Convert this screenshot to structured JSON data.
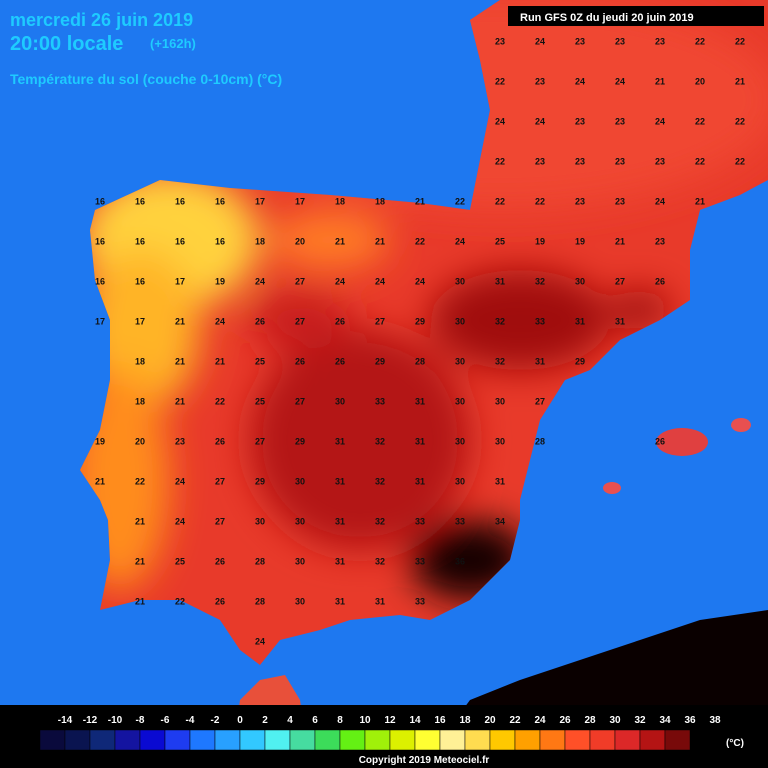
{
  "header": {
    "date": "mercredi 26 juin 2019",
    "time": "20:00 locale",
    "lead": "(+162h)",
    "parameter": "Température du sol (couche 0-10cm) (°C)",
    "run": "Run GFS 0Z du jeudi 20 juin 2019"
  },
  "grid": [
    [
      null,
      null,
      null,
      null,
      null,
      null,
      null,
      null,
      null,
      null,
      23,
      24,
      23,
      23,
      23,
      22,
      22
    ],
    [
      null,
      null,
      null,
      null,
      null,
      null,
      null,
      null,
      null,
      null,
      22,
      23,
      24,
      24,
      21,
      20,
      21
    ],
    [
      null,
      null,
      null,
      null,
      null,
      null,
      null,
      null,
      null,
      null,
      24,
      24,
      23,
      23,
      24,
      22,
      22
    ],
    [
      null,
      null,
      null,
      null,
      null,
      null,
      null,
      null,
      null,
      null,
      22,
      23,
      23,
      23,
      23,
      22,
      22
    ],
    [
      16,
      16,
      16,
      16,
      17,
      17,
      18,
      18,
      21,
      22,
      22,
      22,
      23,
      23,
      24,
      21,
      null
    ],
    [
      16,
      16,
      16,
      16,
      18,
      20,
      21,
      21,
      22,
      24,
      25,
      19,
      19,
      21,
      23,
      null,
      null
    ],
    [
      16,
      16,
      17,
      19,
      24,
      27,
      24,
      24,
      24,
      30,
      31,
      32,
      30,
      27,
      26,
      null,
      null
    ],
    [
      17,
      17,
      21,
      24,
      26,
      27,
      26,
      27,
      29,
      30,
      32,
      33,
      31,
      31,
      null,
      null,
      null
    ],
    [
      null,
      18,
      21,
      21,
      25,
      26,
      26,
      29,
      28,
      30,
      32,
      31,
      29,
      null,
      null,
      null,
      null
    ],
    [
      null,
      18,
      21,
      22,
      25,
      27,
      30,
      33,
      31,
      30,
      30,
      27,
      null,
      null,
      null,
      null,
      null
    ],
    [
      19,
      20,
      23,
      26,
      27,
      29,
      31,
      32,
      31,
      30,
      30,
      28,
      null,
      null,
      26,
      null,
      null
    ],
    [
      21,
      22,
      24,
      27,
      29,
      30,
      31,
      32,
      31,
      30,
      31,
      null,
      null,
      null,
      null,
      null,
      null
    ],
    [
      null,
      21,
      24,
      27,
      30,
      30,
      31,
      32,
      33,
      33,
      34,
      null,
      null,
      null,
      null,
      null,
      null
    ],
    [
      null,
      21,
      25,
      26,
      28,
      30,
      31,
      32,
      33,
      36,
      null,
      null,
      null,
      null,
      null,
      null,
      null
    ],
    [
      null,
      21,
      22,
      26,
      28,
      30,
      31,
      31,
      33,
      null,
      null,
      null,
      null,
      null,
      null,
      null,
      null
    ],
    [
      null,
      null,
      null,
      null,
      24,
      null,
      null,
      null,
      null,
      null,
      null,
      null,
      null,
      null,
      null,
      null,
      null
    ]
  ],
  "legend": {
    "labels": [
      -14,
      -12,
      -10,
      -8,
      -6,
      -4,
      -2,
      0,
      2,
      4,
      6,
      8,
      10,
      12,
      14,
      16,
      18,
      20,
      22,
      24,
      26,
      28,
      30,
      32,
      34,
      36,
      38
    ],
    "colors": [
      "#0a0a3c",
      "#0a1450",
      "#0f2878",
      "#1414a0",
      "#0a0ad2",
      "#1e3cf0",
      "#1e78ff",
      "#28a0ff",
      "#32c8ff",
      "#50f0f0",
      "#46dca0",
      "#3cdc5a",
      "#64f014",
      "#a0f00a",
      "#dcf000",
      "#ffff32",
      "#fff096",
      "#ffdc50",
      "#ffc800",
      "#ffa000",
      "#ff7814",
      "#ff5028",
      "#f03c28",
      "#dc2828",
      "#b41414",
      "#780a0a"
    ],
    "unit": "(°C)"
  },
  "footer": {
    "copyright": "Copyright 2019 Meteociel.fr"
  }
}
